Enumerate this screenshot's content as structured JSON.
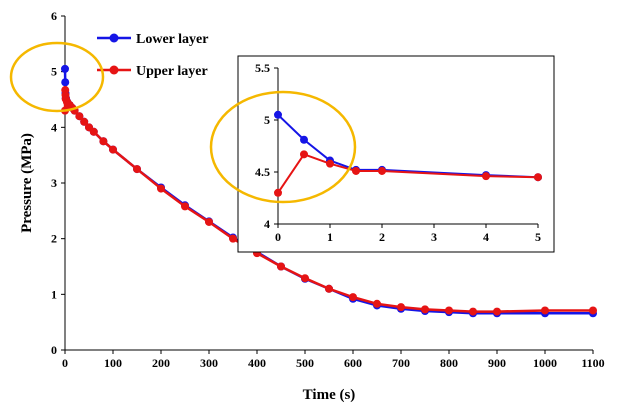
{
  "chart_data": [
    {
      "type": "line",
      "xlabel": "Time (s)",
      "ylabel": "Pressure (MPa)",
      "xlim": [
        0,
        1100
      ],
      "ylim": [
        0,
        6
      ],
      "xticks": [
        0,
        100,
        200,
        300,
        400,
        500,
        600,
        700,
        800,
        900,
        1000,
        1100
      ],
      "yticks": [
        0,
        1,
        2,
        3,
        4,
        5,
        6
      ],
      "legend_position": "top-left",
      "series": [
        {
          "name": "Lower layer",
          "color": "#1515e6",
          "x": [
            0,
            0.5,
            1,
            1.5,
            2,
            4,
            5,
            10,
            15,
            20,
            30,
            40,
            50,
            60,
            80,
            100,
            150,
            200,
            250,
            300,
            350,
            400,
            450,
            500,
            550,
            600,
            650,
            700,
            750,
            800,
            850,
            900,
            1000,
            1100
          ],
          "y": [
            5.05,
            4.81,
            4.61,
            4.52,
            4.52,
            4.47,
            4.45,
            4.4,
            4.35,
            4.3,
            4.2,
            4.1,
            4.0,
            3.92,
            3.75,
            3.6,
            3.25,
            2.92,
            2.6,
            2.31,
            2.02,
            1.76,
            1.5,
            1.28,
            1.1,
            0.92,
            0.8,
            0.74,
            0.7,
            0.68,
            0.66,
            0.66,
            0.66,
            0.66
          ]
        },
        {
          "name": "Upper layer",
          "color": "#e61414",
          "x": [
            0,
            0.5,
            1,
            1.5,
            2,
            4,
            5,
            10,
            15,
            20,
            30,
            40,
            50,
            60,
            80,
            100,
            150,
            200,
            250,
            300,
            350,
            400,
            450,
            500,
            550,
            600,
            650,
            700,
            750,
            800,
            850,
            900,
            1000,
            1100
          ],
          "y": [
            4.3,
            4.67,
            4.58,
            4.51,
            4.51,
            4.46,
            4.45,
            4.4,
            4.35,
            4.3,
            4.2,
            4.1,
            4.0,
            3.92,
            3.75,
            3.6,
            3.25,
            2.9,
            2.58,
            2.3,
            2.0,
            1.74,
            1.5,
            1.29,
            1.1,
            0.95,
            0.83,
            0.77,
            0.73,
            0.71,
            0.69,
            0.69,
            0.71,
            0.71
          ]
        }
      ]
    },
    {
      "type": "line",
      "xlabel": "",
      "ylabel": "",
      "xlim": [
        0,
        5
      ],
      "ylim": [
        4,
        5.5
      ],
      "xticks": [
        0,
        1,
        2,
        3,
        4,
        5
      ],
      "yticks": [
        4,
        4.5,
        5,
        5.5
      ],
      "series": [
        {
          "name": "Lower layer",
          "color": "#1515e6",
          "x": [
            0,
            0.5,
            1,
            1.5,
            2,
            4,
            5
          ],
          "y": [
            5.05,
            4.81,
            4.61,
            4.52,
            4.52,
            4.47,
            4.45
          ]
        },
        {
          "name": "Upper layer",
          "color": "#e61414",
          "x": [
            0,
            0.5,
            1,
            1.5,
            2,
            4,
            5
          ],
          "y": [
            4.3,
            4.67,
            4.58,
            4.51,
            4.51,
            4.46,
            4.45
          ]
        }
      ]
    }
  ],
  "highlight_color": "#f5b800"
}
